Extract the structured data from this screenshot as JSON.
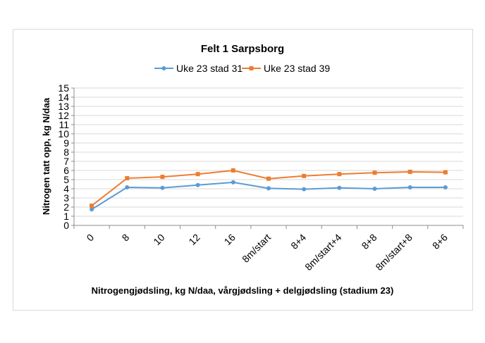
{
  "chart_data": {
    "type": "line",
    "title": "Felt 1 Sarpsborg",
    "xlabel": "Nitrogengjødsling, kg N/daa, vårgjødsling + delgjødsling (stadium 23)",
    "ylabel": "Nitrogen tatt opp, kg N/daa",
    "categories": [
      "0",
      "8",
      "10",
      "12",
      "16",
      "8m/start",
      "8+4",
      "8m/start+4",
      "8+8",
      "8m/start+8",
      "8+6"
    ],
    "ylim": [
      0,
      15
    ],
    "yticks": [
      0,
      1,
      2,
      3,
      4,
      5,
      6,
      7,
      8,
      9,
      10,
      11,
      12,
      13,
      14,
      15
    ],
    "grid": true,
    "legend_position": "top",
    "series": [
      {
        "name": "Uke 23 stad 31",
        "color": "#5b9bd5",
        "marker": "circle",
        "values": [
          1.75,
          4.15,
          4.1,
          4.4,
          4.7,
          4.05,
          3.95,
          4.1,
          4.0,
          4.15,
          4.15
        ]
      },
      {
        "name": "Uke 23 stad 39",
        "color": "#ed7d31",
        "marker": "square",
        "values": [
          2.15,
          5.15,
          5.3,
          5.6,
          6.0,
          5.1,
          5.4,
          5.6,
          5.75,
          5.85,
          5.8
        ]
      }
    ]
  }
}
